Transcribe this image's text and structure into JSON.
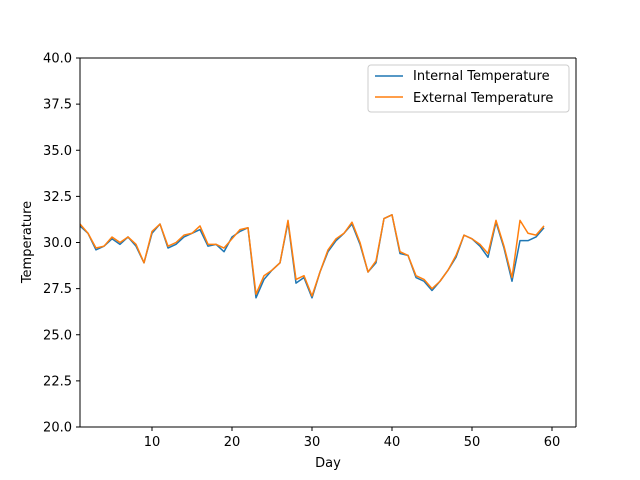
{
  "chart_data": {
    "type": "line",
    "title": "",
    "xlabel": "Day",
    "ylabel": "Temperature",
    "xlim": [
      1,
      63
    ],
    "ylim": [
      20,
      40
    ],
    "x_ticks": [
      10,
      20,
      30,
      40,
      50,
      60
    ],
    "y_ticks": [
      20.0,
      22.5,
      25.0,
      27.5,
      30.0,
      32.5,
      35.0,
      37.5,
      40.0
    ],
    "x_tick_labels": [
      "10",
      "20",
      "30",
      "40",
      "50",
      "60"
    ],
    "y_tick_labels": [
      "20.0",
      "22.5",
      "25.0",
      "27.5",
      "30.0",
      "32.5",
      "35.0",
      "37.5",
      "40.0"
    ],
    "legend_position": "top-right",
    "x": [
      1,
      2,
      3,
      4,
      5,
      6,
      7,
      8,
      9,
      10,
      11,
      12,
      13,
      14,
      15,
      16,
      17,
      18,
      19,
      20,
      21,
      22,
      23,
      24,
      25,
      26,
      27,
      28,
      29,
      30,
      31,
      32,
      33,
      34,
      35,
      36,
      37,
      38,
      39,
      40,
      41,
      42,
      43,
      44,
      45,
      46,
      47,
      48,
      49,
      50,
      51,
      52,
      53,
      54,
      55,
      56,
      57,
      58,
      59
    ],
    "series": [
      {
        "name": "Internal Temperature",
        "color": "#1f77b4",
        "values": [
          30.9,
          30.5,
          29.6,
          29.8,
          30.2,
          29.9,
          30.3,
          29.8,
          28.9,
          30.5,
          31.0,
          29.7,
          29.9,
          30.3,
          30.5,
          30.7,
          29.8,
          29.9,
          29.5,
          30.3,
          30.6,
          30.8,
          27.0,
          28.0,
          28.5,
          28.9,
          31.1,
          27.8,
          28.1,
          27.0,
          28.4,
          29.5,
          30.1,
          30.5,
          31.0,
          29.9,
          28.4,
          28.9,
          31.3,
          31.5,
          29.4,
          29.3,
          28.1,
          27.9,
          27.4,
          27.9,
          28.5,
          29.2,
          30.4,
          30.2,
          29.8,
          29.2,
          31.1,
          29.7,
          27.9,
          30.1,
          30.1,
          30.3,
          30.8
        ]
      },
      {
        "name": "External Temperature",
        "color": "#ff7f0e",
        "values": [
          31.0,
          30.5,
          29.7,
          29.8,
          30.3,
          30.0,
          30.3,
          29.9,
          28.9,
          30.6,
          31.0,
          29.8,
          30.0,
          30.4,
          30.5,
          30.9,
          29.9,
          29.9,
          29.7,
          30.2,
          30.7,
          30.8,
          27.2,
          28.2,
          28.5,
          28.9,
          31.2,
          28.0,
          28.2,
          27.1,
          28.4,
          29.6,
          30.2,
          30.5,
          31.1,
          30.0,
          28.4,
          29.0,
          31.3,
          31.5,
          29.5,
          29.3,
          28.2,
          28.0,
          27.5,
          27.9,
          28.5,
          29.3,
          30.4,
          30.2,
          29.9,
          29.4,
          31.2,
          29.8,
          28.1,
          31.2,
          30.5,
          30.4,
          30.9
        ]
      }
    ]
  }
}
